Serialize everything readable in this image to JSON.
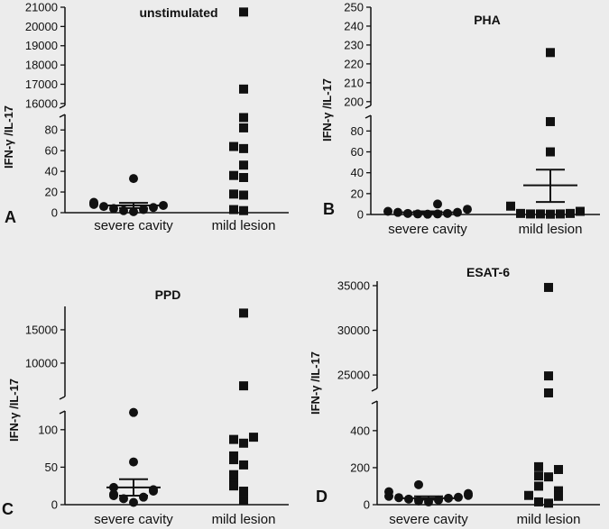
{
  "chart_data": [
    {
      "type": "scatter",
      "panel": "A",
      "title": "unstimulated",
      "ylabel": "IFN-γ /IL-17",
      "categories": [
        "severe cavity",
        "mild lesion"
      ],
      "axis_segments": [
        {
          "range": [
            0,
            95
          ],
          "ticks": [
            0,
            20,
            40,
            60,
            80
          ],
          "tick_labels": [
            "0",
            "20",
            "40",
            "60",
            "80"
          ]
        },
        {
          "range": [
            15900,
            21000
          ],
          "ticks": [
            16000,
            17000,
            18000,
            19000,
            20000,
            21000
          ],
          "tick_labels": [
            "16000",
            "17000",
            "18000",
            "19000",
            "20000",
            "21000"
          ]
        }
      ],
      "series": [
        {
          "category": "severe cavity",
          "marker": "circle",
          "values": [
            33,
            10,
            9,
            8,
            7,
            6,
            5,
            4,
            3,
            2,
            1
          ],
          "mean": 7,
          "sem_upper": 9.5,
          "sem_lower": 4.5
        },
        {
          "category": "mild lesion",
          "marker": "square",
          "values": [
            20750,
            16750,
            92,
            82,
            64,
            62,
            46,
            36,
            34,
            18,
            17,
            3,
            2
          ]
        }
      ]
    },
    {
      "type": "scatter",
      "panel": "B",
      "title": "PHA",
      "ylabel": "IFN-γ /IL-17",
      "categories": [
        "severe cavity",
        "mild lesion"
      ],
      "axis_segments": [
        {
          "range": [
            0,
            95
          ],
          "ticks": [
            0,
            20,
            40,
            60,
            80
          ],
          "tick_labels": [
            "0",
            "20",
            "40",
            "60",
            "80"
          ]
        },
        {
          "range": [
            198,
            250
          ],
          "ticks": [
            200,
            210,
            220,
            230,
            240,
            250
          ],
          "tick_labels": [
            "200",
            "210",
            "220",
            "230",
            "240",
            "250"
          ]
        }
      ],
      "series": [
        {
          "category": "severe cavity",
          "marker": "circle",
          "values": [
            10,
            5,
            3,
            2,
            2,
            1,
            1,
            0.5,
            0.5,
            0.3
          ],
          "mean": 2,
          "sem_upper": 3,
          "sem_lower": 1
        },
        {
          "category": "mild lesion",
          "marker": "square",
          "values": [
            226,
            89,
            60,
            8,
            3,
            1,
            1,
            0.5,
            0.5,
            0.5,
            0.3
          ],
          "mean": 28,
          "sem_upper": 43,
          "sem_lower": 12
        }
      ]
    },
    {
      "type": "scatter",
      "panel": "C",
      "title": "PPD",
      "ylabel": "IFN-γ /IL-17",
      "categories": [
        "severe cavity",
        "mild lesion"
      ],
      "axis_segments": [
        {
          "range": [
            0,
            125
          ],
          "ticks": [
            0,
            50,
            100
          ],
          "tick_labels": [
            "0",
            "50",
            "100"
          ]
        },
        {
          "range": [
            5000,
            18500
          ],
          "ticks": [
            10000,
            15000
          ],
          "tick_labels": [
            "10000",
            "15000"
          ]
        }
      ],
      "series": [
        {
          "category": "severe cavity",
          "marker": "circle",
          "values": [
            123,
            57,
            23,
            20,
            18,
            14,
            12,
            10,
            8,
            3
          ],
          "mean": 23,
          "sem_upper": 34,
          "sem_lower": 12
        },
        {
          "category": "mild lesion",
          "marker": "square",
          "values": [
            17500,
            6600,
            90,
            87,
            82,
            65,
            60,
            53,
            40,
            30,
            25,
            18,
            6
          ]
        }
      ]
    },
    {
      "type": "scatter",
      "panel": "D",
      "title": "ESAT-6",
      "ylabel": "IFN-γ /IL-17",
      "categories": [
        "severe cavity",
        "mild lesion"
      ],
      "axis_segments": [
        {
          "range": [
            0,
            560
          ],
          "ticks": [
            0,
            200,
            400
          ],
          "tick_labels": [
            "0",
            "200",
            "400"
          ]
        },
        {
          "range": [
            23500,
            35500
          ],
          "ticks": [
            25000,
            30000,
            35000
          ],
          "tick_labels": [
            "25000",
            "30000",
            "35000"
          ]
        }
      ],
      "series": [
        {
          "category": "severe cavity",
          "marker": "circle",
          "values": [
            108,
            70,
            60,
            50,
            45,
            40,
            38,
            35,
            30,
            25,
            20,
            15
          ],
          "mean": 35,
          "sem_upper": 45,
          "sem_lower": 27
        },
        {
          "category": "mild lesion",
          "marker": "square",
          "values": [
            34800,
            24900,
            23000,
            205,
            190,
            155,
            150,
            100,
            75,
            50,
            45,
            15,
            8
          ]
        }
      ]
    }
  ]
}
